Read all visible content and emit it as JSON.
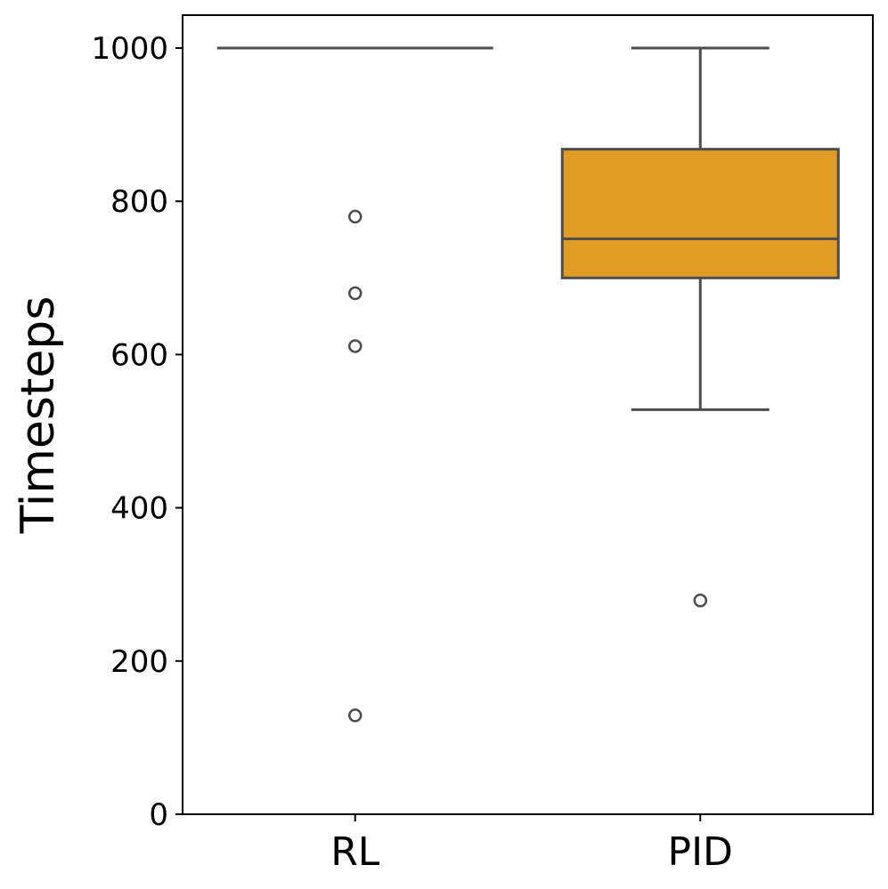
{
  "chart_data": {
    "type": "box",
    "title": "",
    "xlabel": "",
    "ylabel": "Timesteps",
    "ylim": [
      0,
      1043
    ],
    "yticks": [
      0,
      200,
      400,
      600,
      800,
      1000
    ],
    "grid": false,
    "categories": [
      "RL",
      "PID"
    ],
    "series": [
      {
        "category": "RL",
        "whisker_low": 1000,
        "q1": 1000,
        "median": 1000,
        "q3": 1000,
        "whisker_high": 1000,
        "outliers": [
          780,
          680,
          611,
          129
        ],
        "color": "#4c72b0"
      },
      {
        "category": "PID",
        "whisker_low": 528,
        "q1": 700,
        "median": 751,
        "q3": 868,
        "whisker_high": 1000,
        "outliers": [
          279
        ],
        "color": "#e09c24"
      }
    ],
    "line_color": "#4d4d4d"
  }
}
